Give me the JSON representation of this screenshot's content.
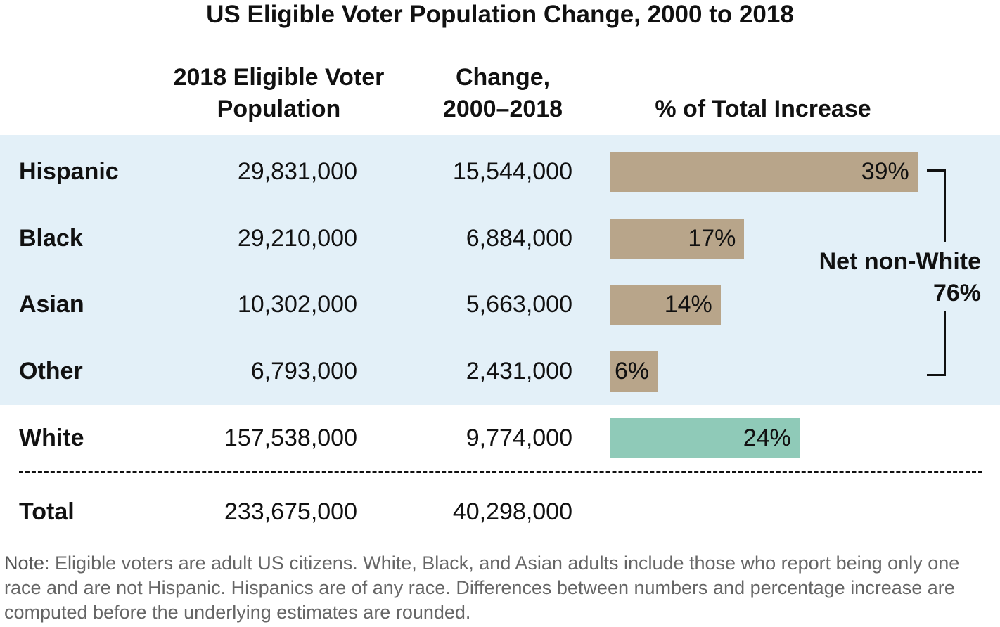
{
  "title": "US Eligible Voter Population Change, 2000 to 2018",
  "headers": {
    "population": [
      "2018 Eligible Voter",
      "Population"
    ],
    "change": [
      "Change,",
      "2000–2018"
    ],
    "percent": "% of Total Increase"
  },
  "colors": {
    "non_white_band": "#e3f0f8",
    "non_white_bar": "#b8a58a",
    "white_bar": "#8fcab8"
  },
  "chart_data": {
    "type": "table",
    "columns": [
      "",
      "2018 Eligible Voter Population",
      "Change, 2000–2018",
      "% of Total Increase"
    ],
    "rows": [
      {
        "label": "Hispanic",
        "population": "29,831,000",
        "change": "15,544,000",
        "percent": 39,
        "percent_label": "39%",
        "group": "non-white"
      },
      {
        "label": "Black",
        "population": "29,210,000",
        "change": "6,884,000",
        "percent": 17,
        "percent_label": "17%",
        "group": "non-white"
      },
      {
        "label": "Asian",
        "population": "10,302,000",
        "change": "5,663,000",
        "percent": 14,
        "percent_label": "14%",
        "group": "non-white"
      },
      {
        "label": "Other",
        "population": "6,793,000",
        "change": "2,431,000",
        "percent": 6,
        "percent_label": "6%",
        "group": "non-white"
      },
      {
        "label": "White",
        "population": "157,538,000",
        "change": "9,774,000",
        "percent": 24,
        "percent_label": "24%",
        "group": "white"
      }
    ],
    "total": {
      "label": "Total",
      "population": "233,675,000",
      "change": "40,298,000"
    },
    "annotation": {
      "label": "Net non-White",
      "value": "76%"
    }
  },
  "note": {
    "prefix": "Note:",
    "text": " Eligible voters are adult US citizens. White, Black, and Asian adults include those who report being only one race and are not Hispanic. Hispanics are of any race. Differences between numbers and percentage increase are computed before the underlying estimates are rounded."
  }
}
